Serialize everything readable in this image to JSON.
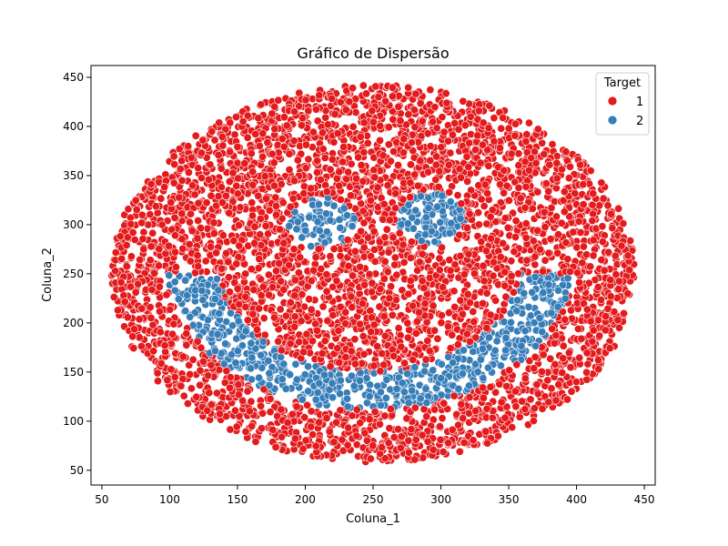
{
  "chart_data": {
    "type": "scatter",
    "title": "Gráfico de Dispersão",
    "xlabel": "Coluna_1",
    "ylabel": "Coluna_2",
    "xlim": [
      42,
      458
    ],
    "ylim": [
      35,
      462
    ],
    "xticks": [
      50,
      100,
      150,
      200,
      250,
      300,
      350,
      400,
      450
    ],
    "yticks": [
      50,
      100,
      150,
      200,
      250,
      300,
      350,
      400,
      450
    ],
    "grid": false,
    "legend": {
      "title": "Target",
      "placement": "top-right"
    },
    "colors": {
      "1": "#e41a1c",
      "2": "#377eb8"
    },
    "point_count_approx": 5000,
    "shape_description": {
      "face_ellipse": {
        "cx": 250,
        "cy": 250,
        "rx": 193,
        "ry": 192,
        "target": "1"
      },
      "left_eye_ellipse": {
        "cx": 212,
        "cy": 302,
        "rx": 25,
        "ry": 26,
        "target": "2"
      },
      "right_eye_ellipse": {
        "cx": 292,
        "cy": 306,
        "rx": 25,
        "ry": 26,
        "target": "2"
      },
      "smile_arc": {
        "cx": 247,
        "cy": 262,
        "inner_radius": 112,
        "outer_radius": 150,
        "y_max": 250,
        "target": "2"
      }
    },
    "series": [
      {
        "name": "1",
        "color": "#e41a1c"
      },
      {
        "name": "2",
        "color": "#377eb8"
      }
    ]
  }
}
